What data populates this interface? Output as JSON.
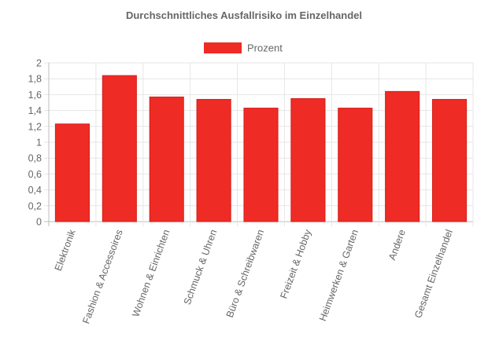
{
  "chart_data": {
    "type": "bar",
    "title": "Durchschnittliches Ausfallrisiko im Einzelhandel",
    "legend": {
      "position": "top",
      "entries": [
        "Prozent"
      ]
    },
    "categories": [
      "Elektronik",
      "Fashion & Accessoires",
      "Wohnen & Einrichten",
      "Schmuck & Uhren",
      "Büro & Schreibwaren",
      "Freizeit & Hobby",
      "Heimwerken & Garten",
      "Andere",
      "Gesamt Einzelhandel"
    ],
    "series": [
      {
        "name": "Prozent",
        "color": "#ee2b24",
        "values": [
          1.23,
          1.84,
          1.57,
          1.54,
          1.43,
          1.55,
          1.43,
          1.64,
          1.54
        ]
      }
    ],
    "ylim": [
      0,
      2
    ],
    "yticks": [
      "0",
      "0,2",
      "0,4",
      "0,6",
      "0,8",
      "1",
      "1,2",
      "1,4",
      "1,6",
      "1,8",
      "2"
    ],
    "grid": true,
    "xlabel": "",
    "ylabel": ""
  }
}
